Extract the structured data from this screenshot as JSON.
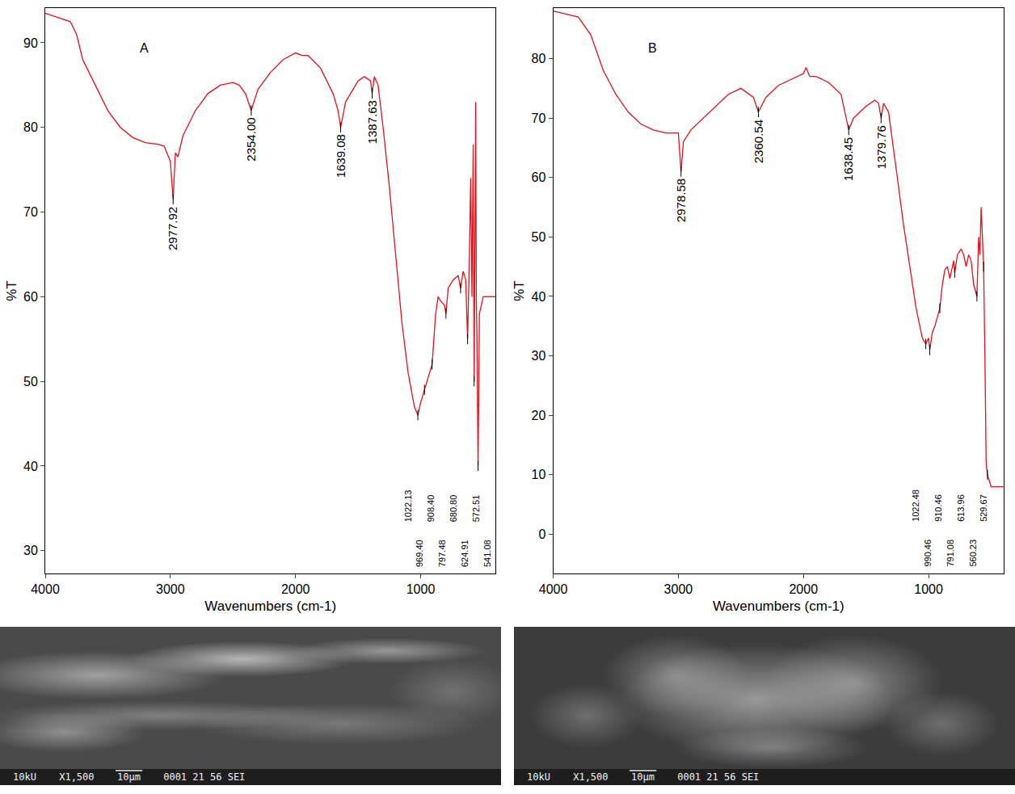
{
  "chart_data": [
    {
      "type": "line",
      "title": "A",
      "x_label": "Wavenumbers (cm-1)",
      "y_label": "%T",
      "color": "#e8101a",
      "grid": false,
      "xlim": [
        4000,
        400
      ],
      "xticks": [
        4000,
        3000,
        2000,
        1000
      ],
      "ylim": [
        27.3,
        94.1
      ],
      "yticks": [
        30,
        40,
        50,
        60,
        70,
        80,
        90
      ],
      "x": [
        4000,
        3900,
        3800,
        3750,
        3700,
        3600,
        3500,
        3400,
        3300,
        3200,
        3100,
        3050,
        3000,
        2977.92,
        2960,
        2940,
        2900,
        2800,
        2700,
        2600,
        2500,
        2450,
        2400,
        2354.0,
        2300,
        2200,
        2100,
        2000,
        1950,
        1900,
        1800,
        1700,
        1660,
        1639.08,
        1600,
        1500,
        1450,
        1400,
        1387.63,
        1370,
        1340,
        1300,
        1250,
        1200,
        1150,
        1100,
        1050,
        1022.13,
        1000,
        969.4,
        950,
        908.4,
        880,
        860,
        840,
        810,
        797.48,
        780,
        740,
        700,
        680.8,
        660,
        640,
        624.91,
        610,
        600,
        590,
        580,
        572.51,
        565,
        560,
        555,
        550,
        541.08,
        530,
        500,
        450,
        400
      ],
      "values": [
        93.5,
        93,
        92.5,
        91,
        88,
        85,
        82,
        80,
        78.8,
        78.2,
        78,
        77.8,
        76,
        71.5,
        77,
        76.5,
        79,
        82,
        84,
        85,
        85.3,
        85,
        84,
        82,
        84.5,
        86.5,
        88,
        88.8,
        88.5,
        88.5,
        87,
        84,
        82,
        80,
        83,
        85.5,
        86,
        85.5,
        84,
        86,
        85,
        80,
        73,
        65,
        57,
        51,
        47,
        46,
        47.5,
        49,
        50,
        52,
        58,
        60,
        59.5,
        59,
        58,
        61,
        62,
        62.5,
        61,
        63,
        62,
        55,
        65,
        74,
        60,
        78,
        50,
        70,
        83,
        60,
        55,
        40,
        58,
        60,
        60,
        60
      ],
      "annotations": [
        {
          "x": 2977.92,
          "y": 71.5,
          "text": "2977.92"
        },
        {
          "x": 2354.0,
          "y": 82,
          "text": "2354.00"
        },
        {
          "x": 1639.08,
          "y": 80,
          "text": "1639.08"
        },
        {
          "x": 1387.63,
          "y": 84,
          "text": "1387.63"
        },
        {
          "x": 1022.13,
          "y": 46,
          "text": "1022.13"
        },
        {
          "x": 969.4,
          "y": 49,
          "text": "969.40"
        },
        {
          "x": 908.4,
          "y": 52,
          "text": "908.40"
        },
        {
          "x": 797.48,
          "y": 58,
          "text": "797.48"
        },
        {
          "x": 680.8,
          "y": 61,
          "text": "680.80"
        },
        {
          "x": 624.91,
          "y": 55,
          "text": "624.91"
        },
        {
          "x": 572.51,
          "y": 50,
          "text": "572.51"
        },
        {
          "x": 541.08,
          "y": 40,
          "text": "541.08"
        }
      ]
    },
    {
      "type": "line",
      "title": "B",
      "x_label": "Wavenumbers (cm-1)",
      "y_label": "%T",
      "color": "#e8101a",
      "grid": false,
      "xlim": [
        4000,
        400
      ],
      "xticks": [
        4000,
        3000,
        2000,
        1000
      ],
      "ylim": [
        -6.6,
        88.5
      ],
      "yticks": [
        0,
        10,
        20,
        30,
        40,
        50,
        60,
        70,
        80
      ],
      "x": [
        4000,
        3800,
        3700,
        3600,
        3500,
        3400,
        3300,
        3200,
        3100,
        3000,
        2978.58,
        2960,
        2900,
        2800,
        2700,
        2600,
        2500,
        2400,
        2360.54,
        2300,
        2200,
        2100,
        2000,
        1980,
        1950,
        1900,
        1800,
        1700,
        1638.45,
        1600,
        1500,
        1430,
        1400,
        1379.76,
        1360,
        1320,
        1300,
        1250,
        1200,
        1150,
        1100,
        1050,
        1022.48,
        1000,
        990.46,
        970,
        950,
        910.46,
        890,
        870,
        850,
        830,
        800,
        791.08,
        770,
        740,
        720,
        700,
        680,
        660,
        640,
        613.96,
        600,
        590,
        580,
        570,
        560.23,
        550,
        540,
        529.67,
        500,
        450,
        400
      ],
      "values": [
        88,
        87,
        84,
        78,
        74,
        71,
        69,
        68,
        67.5,
        67.5,
        61,
        66,
        68,
        70,
        72,
        74,
        75,
        73.5,
        71,
        73.5,
        75.5,
        76.5,
        77.5,
        78.5,
        77,
        77,
        76,
        74,
        68,
        70,
        72,
        73,
        72.5,
        70,
        72.5,
        71,
        68,
        60,
        52,
        45,
        38,
        33,
        32,
        33,
        31,
        34,
        35,
        38,
        42,
        44.5,
        45,
        43,
        46,
        44,
        47,
        48,
        47,
        45,
        47,
        46,
        42,
        40,
        50,
        47,
        55,
        50,
        45,
        30,
        12,
        10,
        8,
        8,
        8
      ],
      "annotations": [
        {
          "x": 2978.58,
          "y": 61,
          "text": "2978.58"
        },
        {
          "x": 2360.54,
          "y": 71,
          "text": "2360.54"
        },
        {
          "x": 1638.45,
          "y": 68,
          "text": "1638.45"
        },
        {
          "x": 1379.76,
          "y": 70,
          "text": "1379.76"
        },
        {
          "x": 1022.48,
          "y": 32,
          "text": "1022.48"
        },
        {
          "x": 990.46,
          "y": 31,
          "text": "990.46"
        },
        {
          "x": 910.46,
          "y": 38,
          "text": "910.46"
        },
        {
          "x": 791.08,
          "y": 44,
          "text": "791.08"
        },
        {
          "x": 613.96,
          "y": 40,
          "text": "613.96"
        },
        {
          "x": 560.23,
          "y": 45,
          "text": "560.23"
        },
        {
          "x": 529.67,
          "y": 10,
          "text": "529.67"
        }
      ]
    }
  ],
  "sem_images": [
    {
      "caption": [
        "10kU",
        "X1,500",
        "10µm",
        "0001 21 56 SEI"
      ]
    },
    {
      "caption": [
        "10kU",
        "X1,500",
        "10µm",
        "0001 21 56 SEI"
      ]
    }
  ]
}
